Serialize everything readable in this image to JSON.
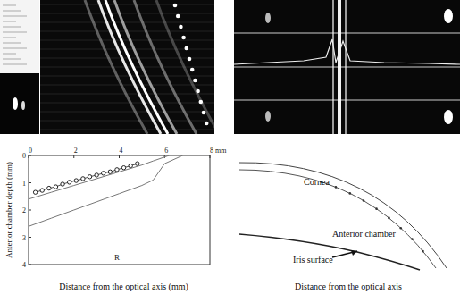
{
  "chart_data": {
    "type": "scatter",
    "x_label": "Distance from the optical axis (mm)",
    "y_label": "Anterior chamber depth (mm)",
    "annotation": "R",
    "xlim": [
      0,
      8
    ],
    "xticks": [
      0,
      2,
      4,
      6,
      {
        "value": 8,
        "label": "8 mm"
      }
    ],
    "ylim": [
      0,
      4
    ],
    "yticks": [
      0,
      1,
      2,
      3,
      4
    ],
    "grid": false,
    "series": [
      {
        "type": "scatter",
        "marker": "circle",
        "color": "#222222",
        "x": [
          0.3,
          0.6,
          0.9,
          1.2,
          1.5,
          1.8,
          2.1,
          2.4,
          2.7,
          3.0,
          3.3,
          3.6,
          3.9,
          4.2,
          4.5,
          4.8
        ],
        "values": [
          1.35,
          1.28,
          1.2,
          1.15,
          1.05,
          0.98,
          0.92,
          0.85,
          0.78,
          0.72,
          0.65,
          0.6,
          0.52,
          0.45,
          0.38,
          0.3
        ]
      },
      {
        "type": "line",
        "line_style": "solid",
        "color": "#777777",
        "x": [
          0,
          1,
          2,
          3,
          4,
          5,
          5.5,
          6.2
        ],
        "values": [
          1.6,
          1.35,
          1.1,
          0.85,
          0.6,
          0.35,
          0.2,
          0
        ]
      },
      {
        "type": "line",
        "line_style": "solid",
        "color": "#777777",
        "x": [
          0,
          1,
          2,
          3,
          4,
          5,
          5.5,
          6,
          6.8
        ],
        "values": [
          2.6,
          2.3,
          2.0,
          1.7,
          1.4,
          1.1,
          0.9,
          0.3,
          0
        ]
      }
    ]
  },
  "diagram": {
    "labels": {
      "cornea": "Cornea",
      "anterior_chamber": "Anterior chamber",
      "iris_surface": "Iris surface"
    },
    "x_label": "Distance from the optical axis"
  }
}
